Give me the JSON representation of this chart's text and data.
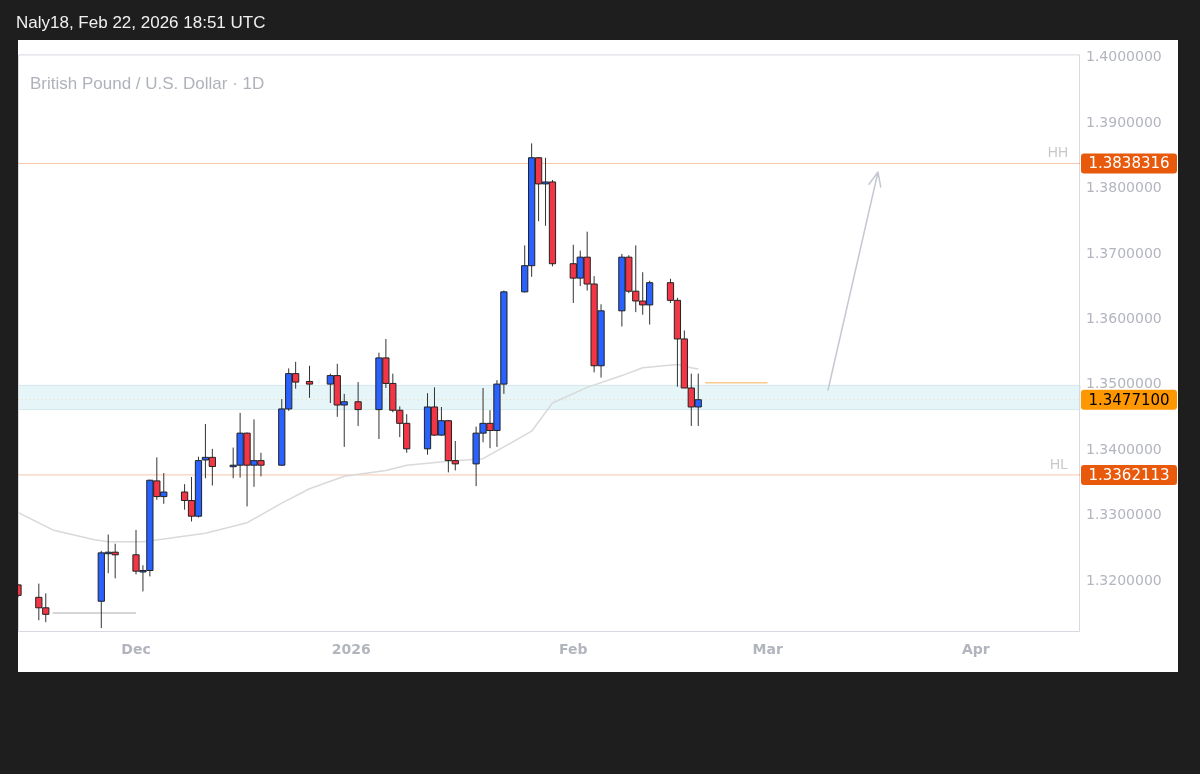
{
  "chart_data": {
    "type": "candlestick",
    "title": "British Pound / U.S. Dollar · 1D",
    "subtitle": "Naly18, Feb 22, 2026 18:51 UTC",
    "x": [
      "2025-11-14",
      "2025-11-17",
      "2025-11-18",
      "2025-11-26",
      "2025-11-27",
      "2025-11-28",
      "2025-12-01",
      "2025-12-02",
      "2025-12-03",
      "2025-12-04",
      "2025-12-05",
      "2025-12-08",
      "2025-12-09",
      "2025-12-10",
      "2025-12-11",
      "2025-12-12",
      "2025-12-15",
      "2025-12-16",
      "2025-12-17",
      "2025-12-18",
      "2025-12-19",
      "2025-12-22",
      "2025-12-23",
      "2025-12-24",
      "2025-12-26",
      "2025-12-29",
      "2025-12-30",
      "2025-12-31",
      "2026-01-02",
      "2026-01-05",
      "2026-01-06",
      "2026-01-07",
      "2026-01-08",
      "2026-01-09",
      "2026-01-12",
      "2026-01-13",
      "2026-01-14",
      "2026-01-15",
      "2026-01-16",
      "2026-01-19",
      "2026-01-20",
      "2026-01-21",
      "2026-01-22",
      "2026-01-23",
      "2026-01-26",
      "2026-01-27",
      "2026-01-28",
      "2026-01-29",
      "2026-01-30",
      "2026-02-02",
      "2026-02-03",
      "2026-02-04",
      "2026-02-05",
      "2026-02-06",
      "2026-02-09",
      "2026-02-10",
      "2026-02-11",
      "2026-02-12",
      "2026-02-13",
      "2026-02-16",
      "2026-02-17",
      "2026-02-18",
      "2026-02-19",
      "2026-02-20"
    ],
    "ohlc": [
      [
        1.3194,
        1.3195,
        1.3175,
        1.3178
      ],
      [
        1.3175,
        1.3196,
        1.314,
        1.3159
      ],
      [
        1.3159,
        1.3181,
        1.3137,
        1.3149
      ],
      [
        1.3169,
        1.3246,
        1.3128,
        1.3243
      ],
      [
        1.3243,
        1.3271,
        1.3212,
        1.3244
      ],
      [
        1.3244,
        1.3257,
        1.3204,
        1.324
      ],
      [
        1.324,
        1.3278,
        1.321,
        1.3215
      ],
      [
        1.3215,
        1.3224,
        1.3184,
        1.3216
      ],
      [
        1.3216,
        1.3355,
        1.3207,
        1.3354
      ],
      [
        1.3353,
        1.3389,
        1.3324,
        1.3329
      ],
      [
        1.3329,
        1.3365,
        1.3318,
        1.3336
      ],
      [
        1.3336,
        1.3348,
        1.3309,
        1.3323
      ],
      [
        1.3323,
        1.3359,
        1.3291,
        1.3299
      ],
      [
        1.3299,
        1.339,
        1.3297,
        1.3384
      ],
      [
        1.3385,
        1.344,
        1.3357,
        1.3389
      ],
      [
        1.3389,
        1.3402,
        1.3346,
        1.3375
      ],
      [
        1.3376,
        1.3404,
        1.3357,
        1.3377
      ],
      [
        1.3377,
        1.3457,
        1.3358,
        1.3426
      ],
      [
        1.3426,
        1.3427,
        1.3314,
        1.3377
      ],
      [
        1.3377,
        1.3447,
        1.3344,
        1.3384
      ],
      [
        1.3384,
        1.3396,
        1.336,
        1.3377
      ],
      [
        1.3377,
        1.3478,
        1.3376,
        1.3463
      ],
      [
        1.3463,
        1.3525,
        1.346,
        1.3517
      ],
      [
        1.3517,
        1.3535,
        1.3494,
        1.3504
      ],
      [
        1.3505,
        1.3529,
        1.348,
        1.3501
      ],
      [
        1.3501,
        1.3517,
        1.3472,
        1.3514
      ],
      [
        1.3514,
        1.3532,
        1.3451,
        1.3469
      ],
      [
        1.3469,
        1.3486,
        1.3405,
        1.3474
      ],
      [
        1.3474,
        1.3504,
        1.3437,
        1.3462
      ],
      [
        1.3462,
        1.3549,
        1.3417,
        1.3541
      ],
      [
        1.3541,
        1.357,
        1.3495,
        1.3502
      ],
      [
        1.3502,
        1.3517,
        1.3458,
        1.3461
      ],
      [
        1.3461,
        1.3467,
        1.342,
        1.3441
      ],
      [
        1.3441,
        1.3455,
        1.3396,
        1.3402
      ],
      [
        1.3402,
        1.3487,
        1.3393,
        1.3466
      ],
      [
        1.3466,
        1.3496,
        1.3422,
        1.3423
      ],
      [
        1.3423,
        1.3466,
        1.3422,
        1.3445
      ],
      [
        1.3445,
        1.3446,
        1.3366,
        1.3384
      ],
      [
        1.3384,
        1.3414,
        1.3369,
        1.3379
      ],
      [
        1.3379,
        1.3436,
        1.3345,
        1.3426
      ],
      [
        1.3426,
        1.3495,
        1.3412,
        1.3441
      ],
      [
        1.3441,
        1.3461,
        1.3403,
        1.343
      ],
      [
        1.343,
        1.3507,
        1.3405,
        1.3501
      ],
      [
        1.3501,
        1.3644,
        1.3486,
        1.3642
      ],
      [
        1.3642,
        1.3713,
        1.3641,
        1.3682
      ],
      [
        1.3682,
        1.3869,
        1.3665,
        1.3847
      ],
      [
        1.3847,
        1.3848,
        1.375,
        1.3807
      ],
      [
        1.3807,
        1.3847,
        1.3743,
        1.381
      ],
      [
        1.381,
        1.3813,
        1.3681,
        1.3685
      ],
      [
        1.3685,
        1.3714,
        1.3625,
        1.3663
      ],
      [
        1.3663,
        1.3705,
        1.3651,
        1.3695
      ],
      [
        1.3695,
        1.3734,
        1.3644,
        1.3654
      ],
      [
        1.3654,
        1.3666,
        1.3519,
        1.3529
      ],
      [
        1.3529,
        1.3623,
        1.3511,
        1.3613
      ],
      [
        1.3613,
        1.37,
        1.3589,
        1.3695
      ],
      [
        1.3695,
        1.3698,
        1.364,
        1.3643
      ],
      [
        1.3643,
        1.3713,
        1.3611,
        1.3628
      ],
      [
        1.3628,
        1.3672,
        1.3607,
        1.3622
      ],
      [
        1.3622,
        1.3659,
        1.3592,
        1.3656
      ],
      [
        1.3656,
        1.3662,
        1.3625,
        1.3629
      ],
      [
        1.3629,
        1.3633,
        1.3497,
        1.357
      ],
      [
        1.357,
        1.3583,
        1.3495,
        1.3495
      ],
      [
        1.3495,
        1.3517,
        1.3437,
        1.3466
      ],
      [
        1.3466,
        1.3517,
        1.3437,
        1.34771
      ]
    ],
    "colors": [
      "#f23645",
      "#f23645",
      "#f23645",
      "#2962ff",
      "#2962ff",
      "#f23645",
      "#f23645",
      "#2962ff",
      "#2962ff",
      "#f23645",
      "#2962ff",
      "#f23645",
      "#f23645",
      "#2962ff",
      "#2962ff",
      "#f23645",
      "#2962ff",
      "#2962ff",
      "#f23645",
      "#2962ff",
      "#f23645",
      "#2962ff",
      "#2962ff",
      "#f23645",
      "#f23645",
      "#2962ff",
      "#f23645",
      "#2962ff",
      "#f23645",
      "#2962ff",
      "#f23645",
      "#f23645",
      "#f23645",
      "#f23645",
      "#2962ff",
      "#f23645",
      "#2962ff",
      "#f23645",
      "#f23645",
      "#2962ff",
      "#2962ff",
      "#f23645",
      "#2962ff",
      "#2962ff",
      "#2962ff",
      "#2962ff",
      "#f23645",
      "#2962ff",
      "#f23645",
      "#f23645",
      "#2962ff",
      "#f23645",
      "#f23645",
      "#2962ff",
      "#2962ff",
      "#f23645",
      "#f23645",
      "#f23645",
      "#2962ff",
      "#f23645",
      "#f23645",
      "#f23645",
      "#f23645",
      "#2962ff"
    ],
    "series": [
      {
        "type": "line",
        "color": "#d9d9d9",
        "x": [
          "2025-11-14",
          "2025-11-19",
          "2025-11-25",
          "2025-11-27",
          "2025-12-02",
          "2025-12-05",
          "2025-12-11",
          "2025-12-17",
          "2025-12-22",
          "2025-12-26",
          "2025-12-31",
          "2026-01-06",
          "2026-01-09",
          "2026-01-15",
          "2026-01-20",
          "2026-01-23",
          "2026-01-27",
          "2026-01-30",
          "2026-02-04",
          "2026-02-09",
          "2026-02-12",
          "2026-02-17",
          "2026-02-19",
          "2026-02-20"
        ],
        "values": [
          1.3305,
          1.3278,
          1.3263,
          1.326,
          1.326,
          1.3264,
          1.3273,
          1.3289,
          1.3319,
          1.3341,
          1.336,
          1.3369,
          1.3377,
          1.3383,
          1.3387,
          1.3405,
          1.3429,
          1.3472,
          1.3496,
          1.3514,
          1.3526,
          1.3531,
          1.3526,
          1.3524
        ]
      },
      {
        "type": "line",
        "color": "#c8c8c8",
        "x": [
          "2025-11-19",
          "2025-12-01"
        ],
        "values": [
          1.3151,
          1.3151
        ]
      },
      {
        "type": "line",
        "color": "#f6c98f",
        "x": [
          "2026-02-21",
          "2026-03-02"
        ],
        "values": [
          1.3503,
          1.3503
        ]
      }
    ],
    "xlim": [
      "2025-11-14",
      "2026-04-16"
    ],
    "xticks": [
      {
        "value": "2025-12-01",
        "label": "Dec"
      },
      {
        "value": "2026-01-01",
        "label": "2026"
      },
      {
        "value": "2026-02-02",
        "label": "Feb"
      },
      {
        "value": "2026-03-02",
        "label": "Mar"
      },
      {
        "value": "2026-04-01",
        "label": "Apr"
      }
    ],
    "ylim": [
      1.3122,
      1.4005
    ],
    "yticks": [
      {
        "value": 1.32,
        "label": "1.3200000"
      },
      {
        "value": 1.33,
        "label": "1.3300000"
      },
      {
        "value": 1.34,
        "label": "1.3400000"
      },
      {
        "value": 1.35,
        "label": "1.3500000"
      },
      {
        "value": 1.36,
        "label": "1.3600000"
      },
      {
        "value": 1.37,
        "label": "1.3700000"
      },
      {
        "value": 1.38,
        "label": "1.3800000"
      },
      {
        "value": 1.39,
        "label": "1.3900000"
      },
      {
        "value": 1.4,
        "label": "1.4000000"
      }
    ],
    "annotations": [
      "HH",
      "HL"
    ],
    "bands": [
      {
        "axis": "y",
        "from": 1.3462,
        "to": 1.3499,
        "color": "#e6f5f8"
      }
    ],
    "ref_lines": [
      {
        "axis": "y",
        "value": 1.3838316,
        "label": "1.3838316",
        "color": "#e8590c"
      },
      {
        "axis": "y",
        "value": 1.3362113,
        "label": "1.3362113",
        "color": "#e8590c"
      },
      {
        "axis": "y",
        "value": 1.34771,
        "label": "1.3477100",
        "color": "#ff9800",
        "line_style": "dotted"
      }
    ]
  }
}
